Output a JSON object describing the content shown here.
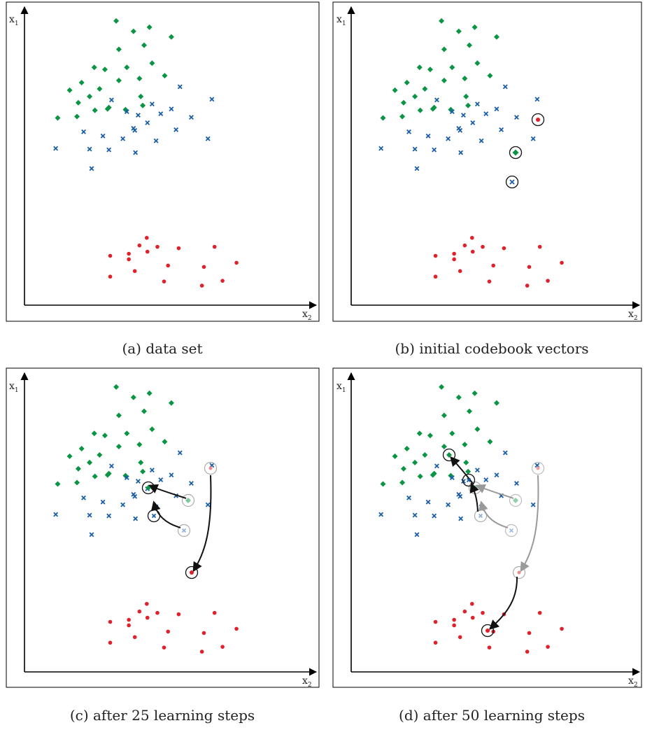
{
  "axes": {
    "y_label": "x",
    "y_sub": "1",
    "x_label": "x",
    "x_sub": "2"
  },
  "colors": {
    "green": "#0a9444",
    "blue": "#1a5ea8",
    "red": "#e0202a",
    "axis": "#000000",
    "gray": "#999999",
    "dark": "#111111"
  },
  "panels": [
    {
      "caption": "(a) data set",
      "show_codebook": false
    },
    {
      "caption": "(b) initial codebook vectors",
      "show_codebook": true
    },
    {
      "caption": "(c) after 25 learning steps",
      "show_codebook": true
    },
    {
      "caption": "(d) after 50 learning steps",
      "show_codebook": true
    }
  ],
  "data": {
    "green_points": [
      [
        138,
        8
      ],
      [
        164,
        23
      ],
      [
        188,
        17
      ],
      [
        221,
        31
      ],
      [
        142,
        49
      ],
      [
        180,
        43
      ],
      [
        192,
        69
      ],
      [
        105,
        75
      ],
      [
        121,
        78
      ],
      [
        154,
        75
      ],
      [
        68,
        108
      ],
      [
        86,
        97
      ],
      [
        113,
        106
      ],
      [
        142,
        94
      ],
      [
        173,
        91
      ],
      [
        211,
        87
      ],
      [
        81,
        126
      ],
      [
        98,
        117
      ],
      [
        125,
        135
      ],
      [
        152,
        136
      ],
      [
        178,
        130
      ],
      [
        50,
        148
      ],
      [
        79,
        146
      ],
      [
        106,
        137
      ],
      [
        127,
        133
      ],
      [
        175,
        117
      ]
    ],
    "blue_points": [
      [
        234,
        103
      ],
      [
        282,
        121
      ],
      [
        131,
        122
      ],
      [
        154,
        139
      ],
      [
        171,
        144
      ],
      [
        205,
        142
      ],
      [
        192,
        128
      ],
      [
        221,
        135
      ],
      [
        251,
        147
      ],
      [
        89,
        168
      ],
      [
        118,
        174
      ],
      [
        148,
        178
      ],
      [
        166,
        166
      ],
      [
        185,
        155
      ],
      [
        164,
        163
      ],
      [
        198,
        181
      ],
      [
        228,
        165
      ],
      [
        276,
        178
      ],
      [
        47,
        192
      ],
      [
        98,
        193
      ],
      [
        127,
        194
      ],
      [
        167,
        198
      ],
      [
        101,
        221
      ]
    ],
    "red_points": [
      [
        184,
        321
      ],
      [
        173,
        332
      ],
      [
        200,
        334
      ],
      [
        157,
        344
      ],
      [
        185,
        341
      ],
      [
        286,
        334
      ],
      [
        129,
        347
      ],
      [
        232,
        336
      ],
      [
        157,
        352
      ],
      [
        216,
        361
      ],
      [
        319,
        357
      ],
      [
        129,
        377
      ],
      [
        166,
        369
      ],
      [
        270,
        363
      ],
      [
        210,
        384
      ],
      [
        298,
        383
      ],
      [
        267,
        390
      ]
    ]
  },
  "codebook": {
    "initial": {
      "red": [
        287,
        153
      ],
      "green": [
        235,
        201
      ],
      "blue": [
        229,
        242
      ]
    },
    "step25": {
      "red": [
        239,
        473
      ],
      "green": [
        177,
        333
      ],
      "blue": [
        184,
        372
      ]
    },
    "step50": {
      "red": [
        196,
        563
      ],
      "green": [
        140,
        280
      ],
      "blue": [
        168,
        319
      ]
    }
  }
}
